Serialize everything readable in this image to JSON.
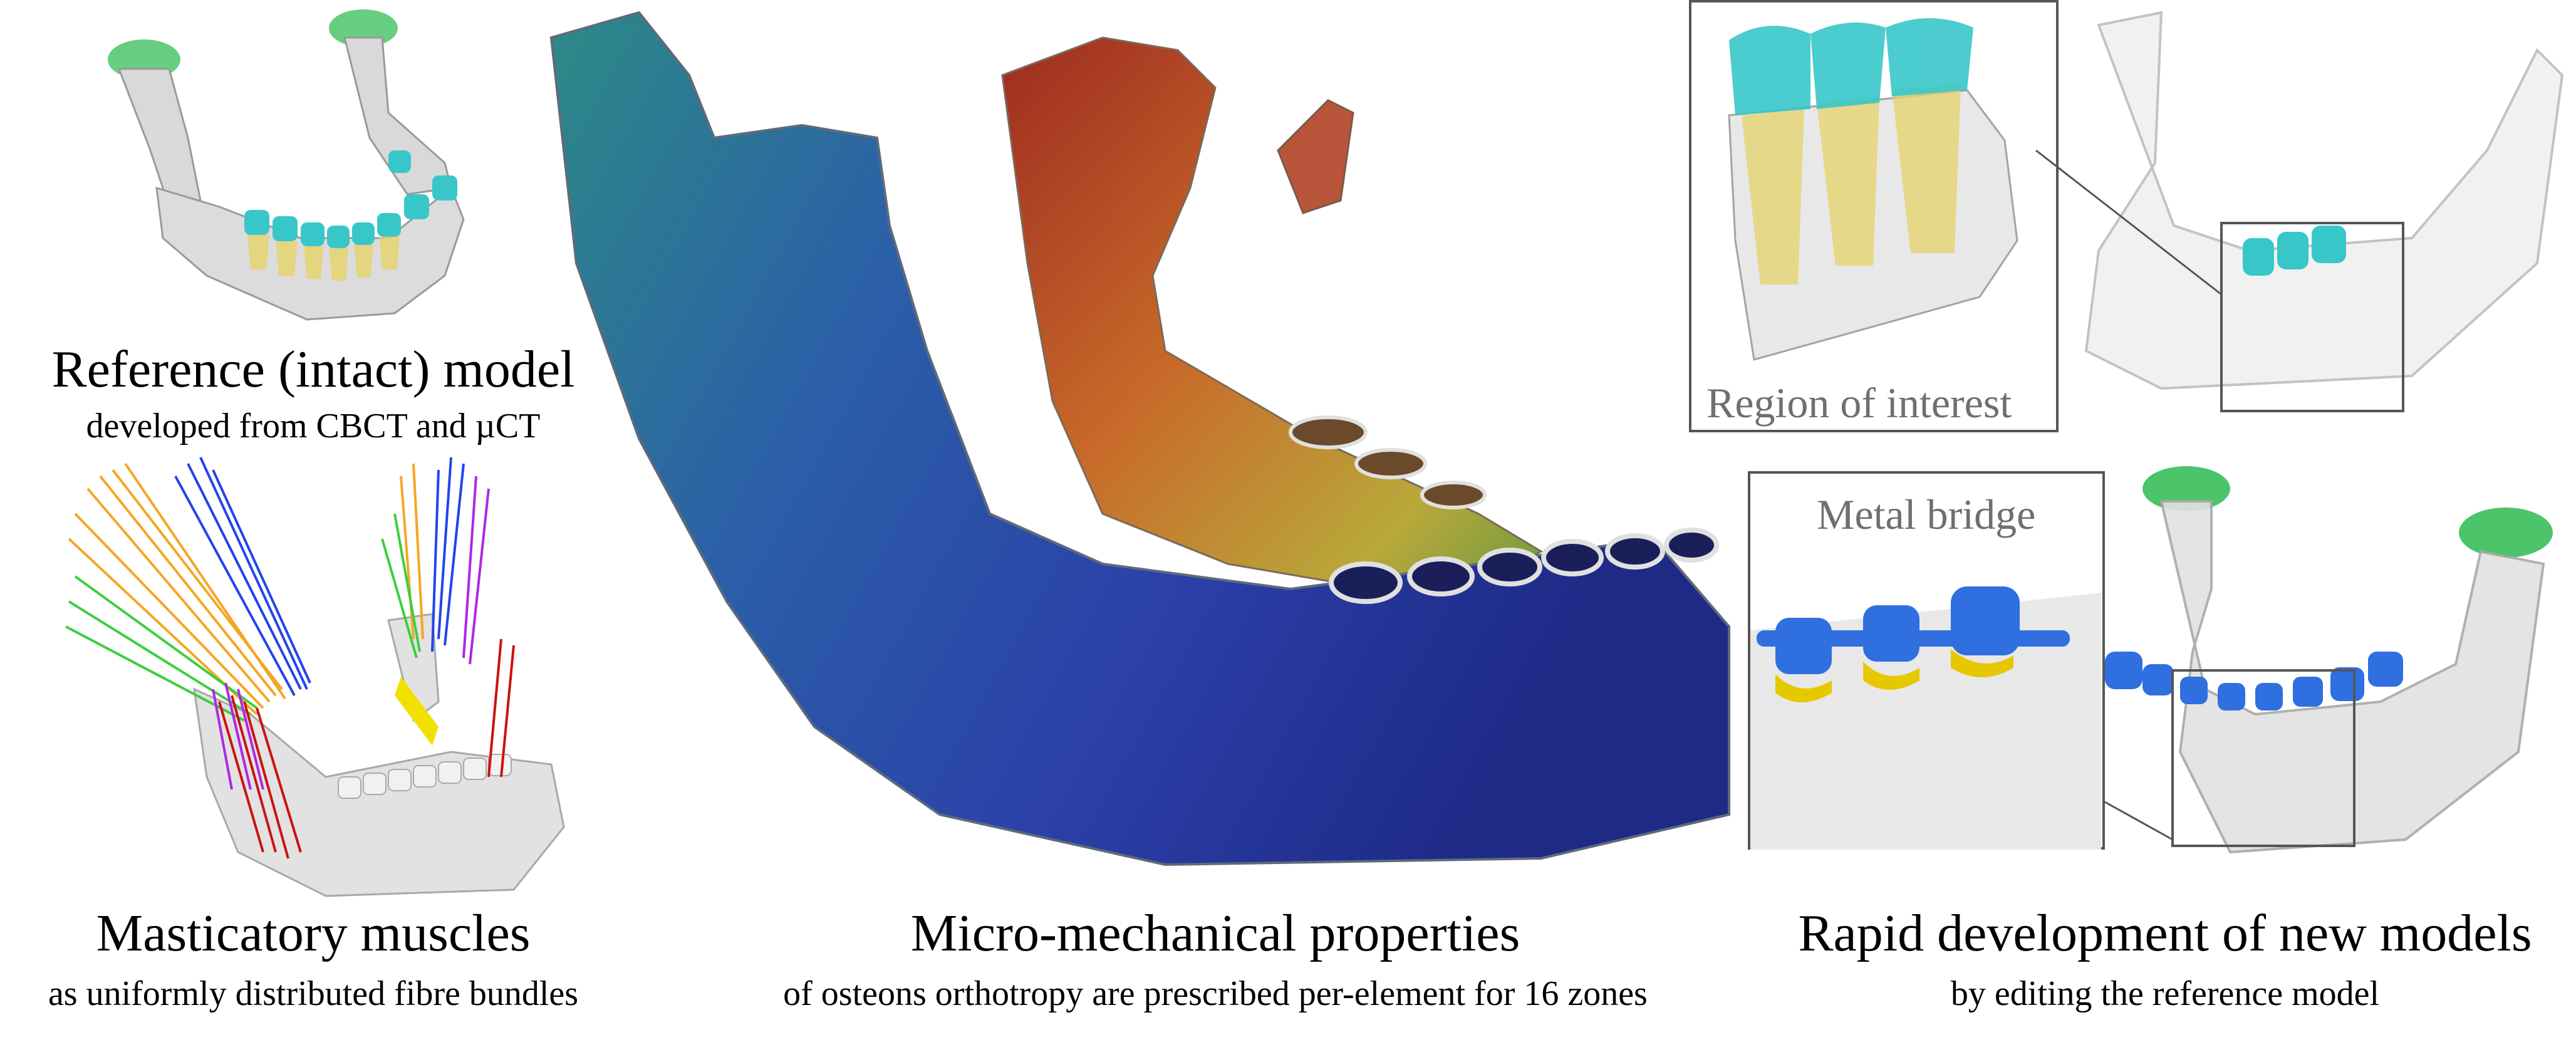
{
  "panels": {
    "reference": {
      "title": "Reference (intact) model",
      "subtitle": "developed from CBCT and µCT"
    },
    "muscles": {
      "title": "Masticatory muscles",
      "subtitle": "as uniformly distributed fibre bundles"
    },
    "micro": {
      "title": "Micro-mechanical properties",
      "subtitle": "of osteons orthotropy are prescribed per-element for 16 zones"
    },
    "rapid": {
      "title": "Rapid development of new models",
      "subtitle": "by editing the reference model"
    }
  },
  "insets": {
    "region": {
      "label": "Region of interest"
    },
    "bridge": {
      "label": "Metal bridge"
    }
  },
  "colors": {
    "bone": "#d9d9d9",
    "crown_teal": "#38c7c9",
    "root_yellow": "#e6d36a",
    "metal_blue": "#2f6fe0",
    "cap_green": "#4cc46a",
    "zone_blue": "#2b3fa8",
    "zone_teal": "#2d8a86",
    "zone_red": "#9e2b20",
    "zone_orange": "#c86a2a",
    "zone_yellow": "#b9a83a"
  }
}
